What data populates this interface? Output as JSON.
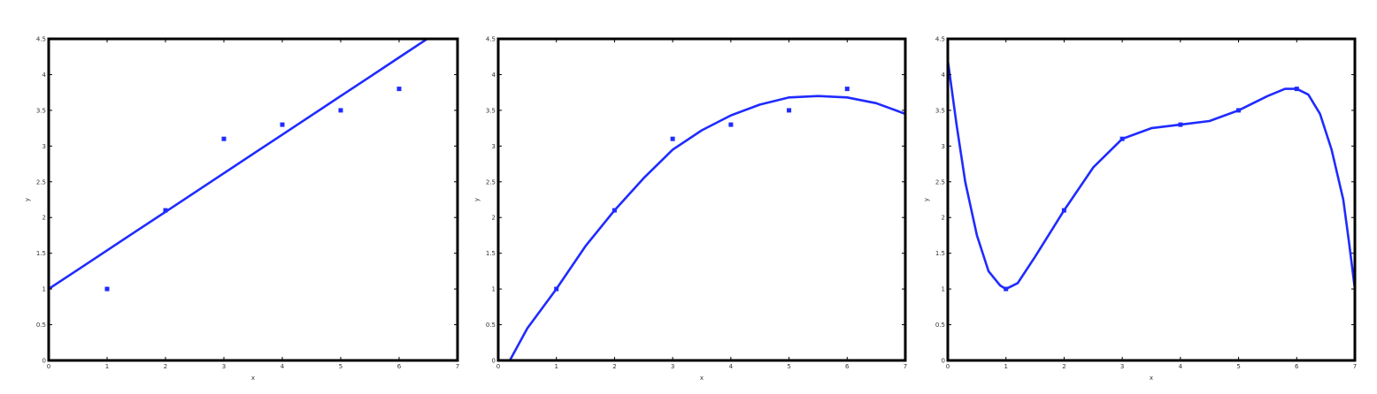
{
  "chart_data": [
    {
      "type": "scatter",
      "title": "",
      "xlabel": "x",
      "ylabel": "y",
      "xlim": [
        0,
        7
      ],
      "ylim": [
        0,
        4.5
      ],
      "x_ticks": [
        0,
        1,
        2,
        3,
        4,
        5,
        6,
        7
      ],
      "y_ticks": [
        0,
        0.5,
        1,
        1.5,
        2,
        2.5,
        3,
        3.5,
        4,
        4.5
      ],
      "x_tick_labels": [
        "0",
        "1",
        "2",
        "3",
        "4",
        "5",
        "6",
        "7"
      ],
      "y_tick_labels": [
        "0",
        "0.5",
        "1",
        "1.5",
        "2",
        "2.5",
        "3",
        "3.5",
        "4",
        "4.5"
      ],
      "grid": false,
      "points": {
        "x": [
          1,
          2,
          3,
          4,
          5,
          6
        ],
        "y": [
          1.0,
          2.1,
          3.1,
          3.3,
          3.5,
          3.8
        ]
      },
      "fit": {
        "kind": "linear",
        "x": [
          0,
          0.5,
          1,
          1.5,
          2,
          2.5,
          3,
          3.5,
          4,
          4.5,
          5,
          5.5,
          6,
          6.5,
          6.85
        ],
        "y": [
          1.0,
          1.27,
          1.54,
          1.81,
          2.08,
          2.35,
          2.62,
          2.89,
          3.16,
          3.43,
          3.7,
          3.97,
          4.24,
          4.51,
          4.7
        ]
      },
      "color": "#1f2bff"
    },
    {
      "type": "scatter",
      "title": "",
      "xlabel": "x",
      "ylabel": "y",
      "xlim": [
        0,
        7
      ],
      "ylim": [
        0,
        4.5
      ],
      "x_ticks": [
        0,
        1,
        2,
        3,
        4,
        5,
        6,
        7
      ],
      "y_ticks": [
        0,
        0.5,
        1,
        1.5,
        2,
        2.5,
        3,
        3.5,
        4,
        4.5
      ],
      "x_tick_labels": [
        "0",
        "1",
        "2",
        "3",
        "4",
        "5",
        "6",
        "7"
      ],
      "y_tick_labels": [
        "0",
        "0.5",
        "1",
        "1.5",
        "2",
        "2.5",
        "3",
        "3.5",
        "4",
        "4.5"
      ],
      "grid": false,
      "points": {
        "x": [
          1,
          2,
          3,
          4,
          5,
          6
        ],
        "y": [
          1.0,
          2.1,
          3.1,
          3.3,
          3.5,
          3.8
        ]
      },
      "fit": {
        "kind": "quadratic",
        "x": [
          0.2,
          0.5,
          1,
          1.5,
          2,
          2.5,
          3,
          3.5,
          4,
          4.5,
          5,
          5.5,
          6,
          6.5,
          7
        ],
        "y": [
          0.0,
          0.45,
          1.0,
          1.6,
          2.1,
          2.55,
          2.95,
          3.22,
          3.43,
          3.58,
          3.68,
          3.7,
          3.68,
          3.6,
          3.45
        ]
      },
      "color": "#1f2bff"
    },
    {
      "type": "scatter",
      "title": "",
      "xlabel": "x",
      "ylabel": "y",
      "xlim": [
        0,
        7
      ],
      "ylim": [
        0,
        4.5
      ],
      "x_ticks": [
        0,
        1,
        2,
        3,
        4,
        5,
        6,
        7
      ],
      "y_ticks": [
        0,
        0.5,
        1,
        1.5,
        2,
        2.5,
        3,
        3.5,
        4,
        4.5
      ],
      "x_tick_labels": [
        "0",
        "1",
        "2",
        "3",
        "4",
        "5",
        "6",
        "7"
      ],
      "y_tick_labels": [
        "0",
        "0.5",
        "1",
        "1.5",
        "2",
        "2.5",
        "3",
        "3.5",
        "4",
        "4.5"
      ],
      "grid": false,
      "points": {
        "x": [
          1,
          2,
          3,
          4,
          5,
          6
        ],
        "y": [
          1.0,
          2.1,
          3.1,
          3.3,
          3.5,
          3.8
        ]
      },
      "fit": {
        "kind": "high-order polynomial",
        "x": [
          0,
          0.15,
          0.3,
          0.5,
          0.7,
          0.9,
          1,
          1.2,
          1.5,
          2,
          2.5,
          3,
          3.5,
          4,
          4.5,
          5,
          5.5,
          5.8,
          6,
          6.2,
          6.4,
          6.6,
          6.8,
          6.9,
          7
        ],
        "y": [
          4.2,
          3.3,
          2.5,
          1.75,
          1.25,
          1.05,
          1.0,
          1.08,
          1.45,
          2.1,
          2.7,
          3.1,
          3.25,
          3.3,
          3.35,
          3.5,
          3.7,
          3.8,
          3.8,
          3.72,
          3.45,
          2.95,
          2.25,
          1.65,
          1.0
        ]
      },
      "color": "#1f2bff"
    }
  ]
}
